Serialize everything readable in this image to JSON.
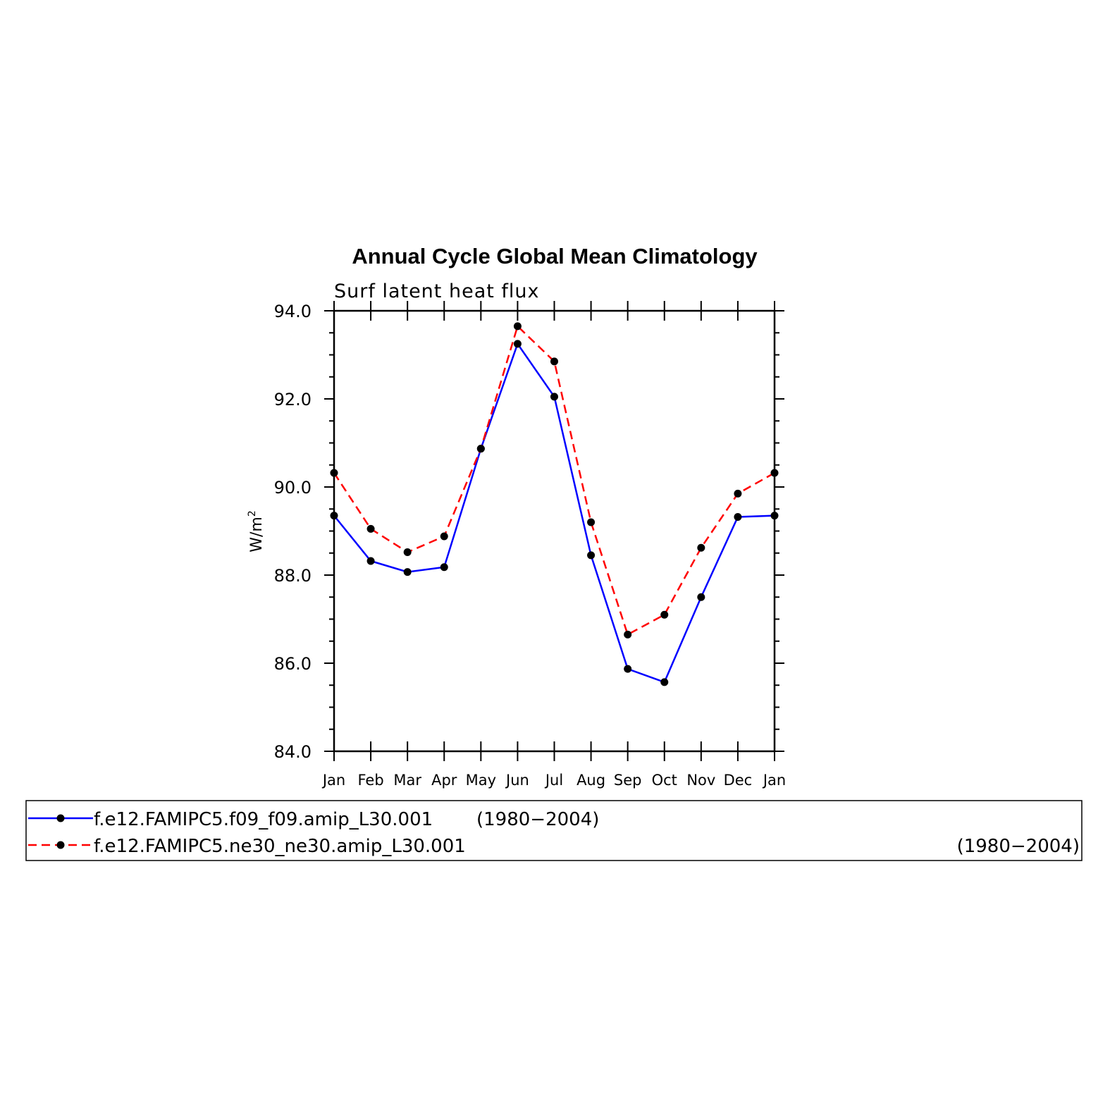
{
  "chart_data": {
    "type": "line",
    "title": "Annual Cycle Global Mean Climatology",
    "subtitle": "Surf latent heat flux",
    "ylabel": "W/m",
    "ylabel_superscript": "2",
    "ylim": [
      84.0,
      94.0
    ],
    "yticks": [
      "84.0",
      "86.0",
      "88.0",
      "90.0",
      "92.0",
      "94.0"
    ],
    "categories": [
      "Jan",
      "Feb",
      "Mar",
      "Apr",
      "May",
      "Jun",
      "Jul",
      "Aug",
      "Sep",
      "Oct",
      "Nov",
      "Dec",
      "Jan"
    ],
    "grid": false,
    "series": [
      {
        "name": "f.e12.FAMIPC5.f09_f09.amip_L30.001",
        "period": "(1980−2004)",
        "color": "#0000ff",
        "style": "solid",
        "marker": "filled-circle",
        "values": [
          89.35,
          88.32,
          88.07,
          88.18,
          90.87,
          93.25,
          92.05,
          88.45,
          85.87,
          85.57,
          87.5,
          89.32,
          89.35
        ]
      },
      {
        "name": "f.e12.FAMIPC5.ne30_ne30.amip_L30.001",
        "period": "(1980−2004)",
        "color": "#ff0000",
        "style": "dashed",
        "marker": "filled-circle",
        "values": [
          90.32,
          89.05,
          88.52,
          88.88,
          90.87,
          93.65,
          92.85,
          89.2,
          86.65,
          87.1,
          88.62,
          89.85,
          90.32
        ]
      }
    ],
    "legend_position": "bottom"
  }
}
